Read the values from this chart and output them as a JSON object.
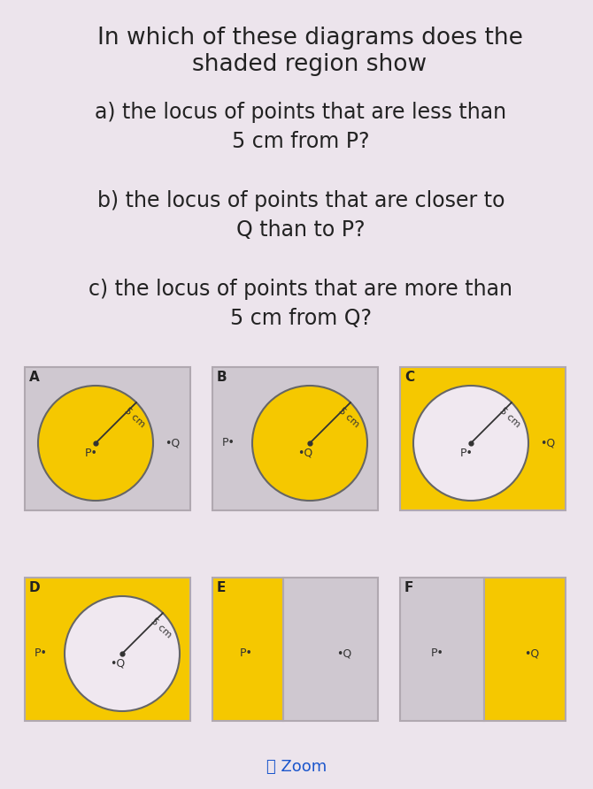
{
  "bg_color": "#ece4ec",
  "yellow": "#F5C800",
  "white": "#f0e8f0",
  "gray": "#cfc8d0",
  "title_line1": "In which of these diagrams does the",
  "title_line2": "shaded region show",
  "q_a_1": "a) the locus of points that are less than",
  "q_a_2": "5 cm from P?",
  "q_b_1": "b) the locus of points that are closer to",
  "q_b_2": "Q than to P?",
  "q_c_1": "c) the locus of points that are more than",
  "q_c_2": "5 cm from Q?",
  "zoom_text": "Zoom",
  "zoom_color": "#1a55cc",
  "text_color": "#222222",
  "box_edge_color": "#b0a8b0",
  "circle_edge_color": "#666666",
  "point_color": "#333333",
  "label_color": "#333333"
}
